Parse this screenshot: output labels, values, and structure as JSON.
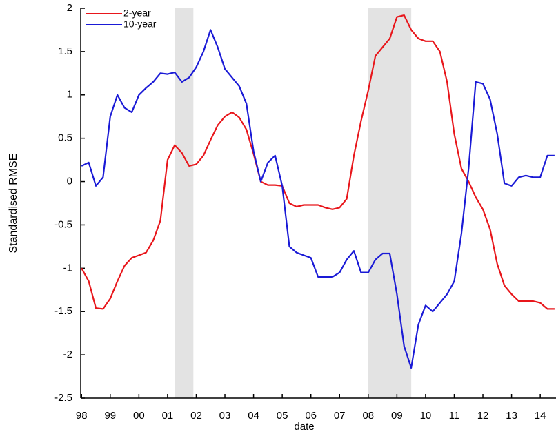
{
  "chart_data": {
    "type": "line",
    "x_label": "date",
    "y_label": "Standardised RMSE",
    "x": [
      1998,
      1998.25,
      1998.5,
      1998.75,
      1999,
      1999.25,
      1999.5,
      1999.75,
      2000,
      2000.25,
      2000.5,
      2000.75,
      2001,
      2001.25,
      2001.5,
      2001.75,
      2002,
      2002.25,
      2002.5,
      2002.75,
      2003,
      2003.25,
      2003.5,
      2003.75,
      2004,
      2004.25,
      2004.5,
      2004.75,
      2005,
      2005.25,
      2005.5,
      2005.75,
      2006,
      2006.25,
      2006.5,
      2006.75,
      2007,
      2007.25,
      2007.5,
      2007.75,
      2008,
      2008.25,
      2008.5,
      2008.75,
      2009,
      2009.25,
      2009.5,
      2009.75,
      2010,
      2010.25,
      2010.5,
      2010.75,
      2011,
      2011.25,
      2011.5,
      2011.75,
      2012,
      2012.25,
      2012.5,
      2012.75,
      2013,
      2013.25,
      2013.5,
      2013.75,
      2014,
      2014.25,
      2014.5
    ],
    "series": [
      {
        "name": "2-year",
        "color": "#e8161b",
        "values": [
          -1.0,
          -1.15,
          -1.46,
          -1.47,
          -1.35,
          -1.15,
          -0.97,
          -0.88,
          -0.85,
          -0.82,
          -0.68,
          -0.45,
          0.25,
          0.42,
          0.33,
          0.18,
          0.2,
          0.3,
          0.48,
          0.65,
          0.75,
          0.8,
          0.74,
          0.6,
          0.32,
          0.0,
          -0.04,
          -0.04,
          -0.05,
          -0.25,
          -0.29,
          -0.27,
          -0.27,
          -0.27,
          -0.3,
          -0.32,
          -0.3,
          -0.2,
          0.3,
          0.7,
          1.05,
          1.45,
          1.55,
          1.65,
          1.9,
          1.92,
          1.75,
          1.65,
          1.62,
          1.62,
          1.5,
          1.15,
          0.55,
          0.15,
          0.0,
          -0.18,
          -0.32,
          -0.55,
          -0.95,
          -1.2,
          -1.3,
          -1.38,
          -1.38,
          -1.38,
          -1.4,
          -1.47,
          -1.47
        ]
      },
      {
        "name": "10-year",
        "color": "#1a1ad6",
        "values": [
          0.18,
          0.22,
          -0.05,
          0.05,
          0.75,
          1.0,
          0.85,
          0.8,
          1.0,
          1.08,
          1.15,
          1.25,
          1.24,
          1.26,
          1.15,
          1.2,
          1.32,
          1.5,
          1.75,
          1.55,
          1.3,
          1.2,
          1.1,
          0.9,
          0.35,
          0.0,
          0.22,
          0.3,
          -0.05,
          -0.75,
          -0.82,
          -0.85,
          -0.88,
          -1.1,
          -1.1,
          -1.1,
          -1.05,
          -0.9,
          -0.8,
          -1.05,
          -1.05,
          -0.9,
          -0.83,
          -0.83,
          -1.3,
          -1.9,
          -2.15,
          -1.65,
          -1.43,
          -1.5,
          -1.4,
          -1.3,
          -1.15,
          -0.6,
          0.15,
          1.15,
          1.13,
          0.95,
          0.55,
          -0.02,
          -0.05,
          0.05,
          0.07,
          0.05,
          0.05,
          0.3,
          0.3
        ]
      }
    ],
    "shaded_regions": [
      [
        2001.25,
        2001.9
      ],
      [
        2008.0,
        2009.5
      ]
    ],
    "shade_color": "#e3e3e3",
    "xlim": [
      1997.97,
      2014.55
    ],
    "xticks": [
      {
        "value": 1998,
        "label": "98"
      },
      {
        "value": 1999,
        "label": "99"
      },
      {
        "value": 2000,
        "label": "00"
      },
      {
        "value": 2001,
        "label": "01"
      },
      {
        "value": 2002,
        "label": "02"
      },
      {
        "value": 2003,
        "label": "03"
      },
      {
        "value": 2004,
        "label": "04"
      },
      {
        "value": 2005,
        "label": "05"
      },
      {
        "value": 2006,
        "label": "06"
      },
      {
        "value": 2007,
        "label": "07"
      },
      {
        "value": 2008,
        "label": "08"
      },
      {
        "value": 2009,
        "label": "09"
      },
      {
        "value": 2010,
        "label": "10"
      },
      {
        "value": 2011,
        "label": "11"
      },
      {
        "value": 2012,
        "label": "12"
      },
      {
        "value": 2013,
        "label": "13"
      },
      {
        "value": 2014,
        "label": "14"
      }
    ],
    "ylim": [
      -2.5,
      2
    ],
    "yticks": [
      -2.5,
      -2,
      -1.5,
      -1,
      -0.5,
      0,
      0.5,
      1,
      1.5,
      2
    ],
    "grid": false,
    "legend": "upper-left"
  }
}
